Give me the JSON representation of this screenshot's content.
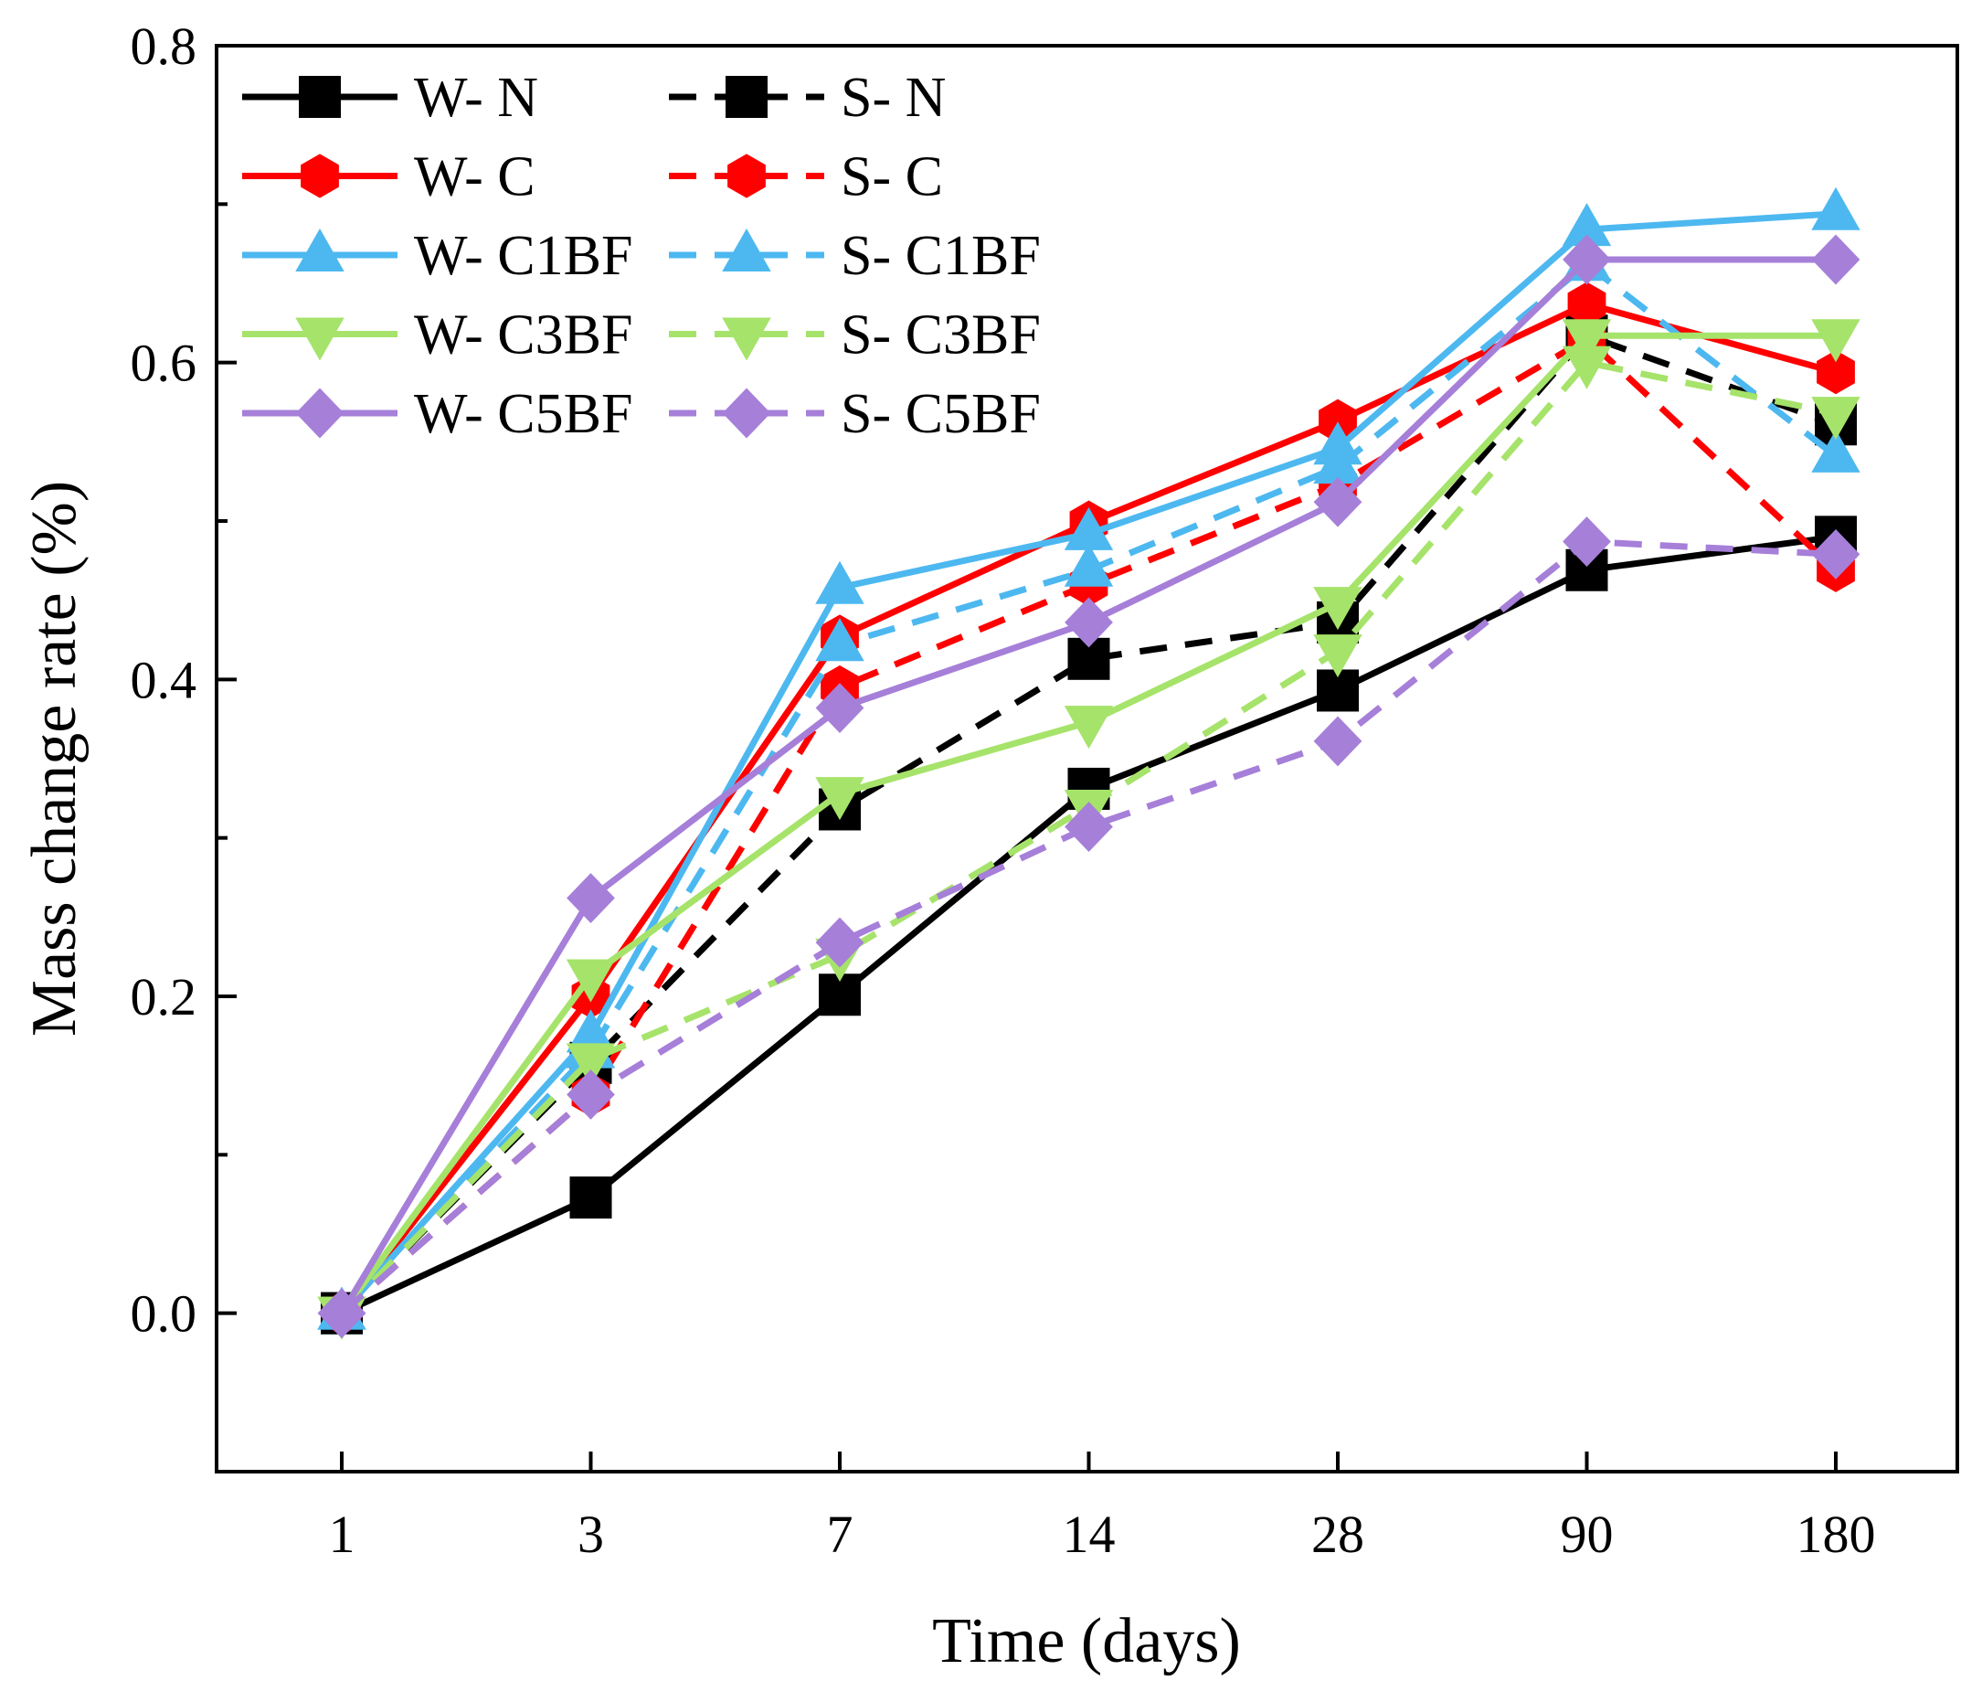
{
  "chart_data": {
    "type": "line",
    "title": "",
    "xlabel": "Time (days)",
    "ylabel": "Mass change rate (%)",
    "categories": [
      "1",
      "3",
      "7",
      "14",
      "28",
      "90",
      "180"
    ],
    "ylim": [
      -0.1,
      0.8
    ],
    "yticks": [
      "0.0",
      "0.2",
      "0.4",
      "0.6",
      "0.8"
    ],
    "ytick_values": [
      0.0,
      0.2,
      0.4,
      0.6,
      0.8
    ],
    "legend_position": "top-left",
    "grid": false,
    "series": [
      {
        "name": "W- N",
        "color": "#000000",
        "dash": "solid",
        "marker": "square",
        "values": [
          0.0,
          0.073,
          0.201,
          0.331,
          0.393,
          0.469,
          0.49
        ]
      },
      {
        "name": "S- N",
        "color": "#000000",
        "dash": "dashed",
        "marker": "square",
        "values": [
          0.0,
          0.158,
          0.318,
          0.413,
          0.436,
          0.617,
          0.561
        ]
      },
      {
        "name": "W- C",
        "color": "#FF0000",
        "dash": "solid",
        "marker": "circle",
        "values": [
          0.0,
          0.2,
          0.427,
          0.499,
          0.563,
          0.637,
          0.594
        ]
      },
      {
        "name": "S- C",
        "color": "#FF0000",
        "dash": "dashed",
        "marker": "circle",
        "values": [
          0.0,
          0.138,
          0.395,
          0.46,
          0.523,
          0.615,
          0.469
        ]
      },
      {
        "name": "W- C1BF",
        "color": "#4DB8F0",
        "dash": "solid",
        "marker": "triangle",
        "values": [
          0.0,
          0.175,
          0.458,
          0.492,
          0.546,
          0.684,
          0.694
        ]
      },
      {
        "name": "S- C1BF",
        "color": "#4DB8F0",
        "dash": "dashed",
        "marker": "triangle",
        "values": [
          0.0,
          0.165,
          0.422,
          0.469,
          0.534,
          0.662,
          0.541
        ]
      },
      {
        "name": "W- C3BF",
        "color": "#A6E36A",
        "dash": "solid",
        "marker": "tri-down",
        "values": [
          0.0,
          0.213,
          0.328,
          0.373,
          0.448,
          0.617,
          0.617
        ]
      },
      {
        "name": "S- C3BF",
        "color": "#A6E36A",
        "dash": "dashed",
        "marker": "tri-down",
        "values": [
          0.0,
          0.16,
          0.226,
          0.32,
          0.418,
          0.6,
          0.568
        ]
      },
      {
        "name": "W- C5BF",
        "color": "#A67FD9",
        "dash": "solid",
        "marker": "diamond",
        "values": [
          0.0,
          0.262,
          0.382,
          0.436,
          0.512,
          0.665,
          0.665
        ]
      },
      {
        "name": "S- C5BF",
        "color": "#A67FD9",
        "dash": "dashed",
        "marker": "diamond",
        "values": [
          0.0,
          0.138,
          0.234,
          0.307,
          0.361,
          0.487,
          0.479
        ]
      }
    ]
  }
}
